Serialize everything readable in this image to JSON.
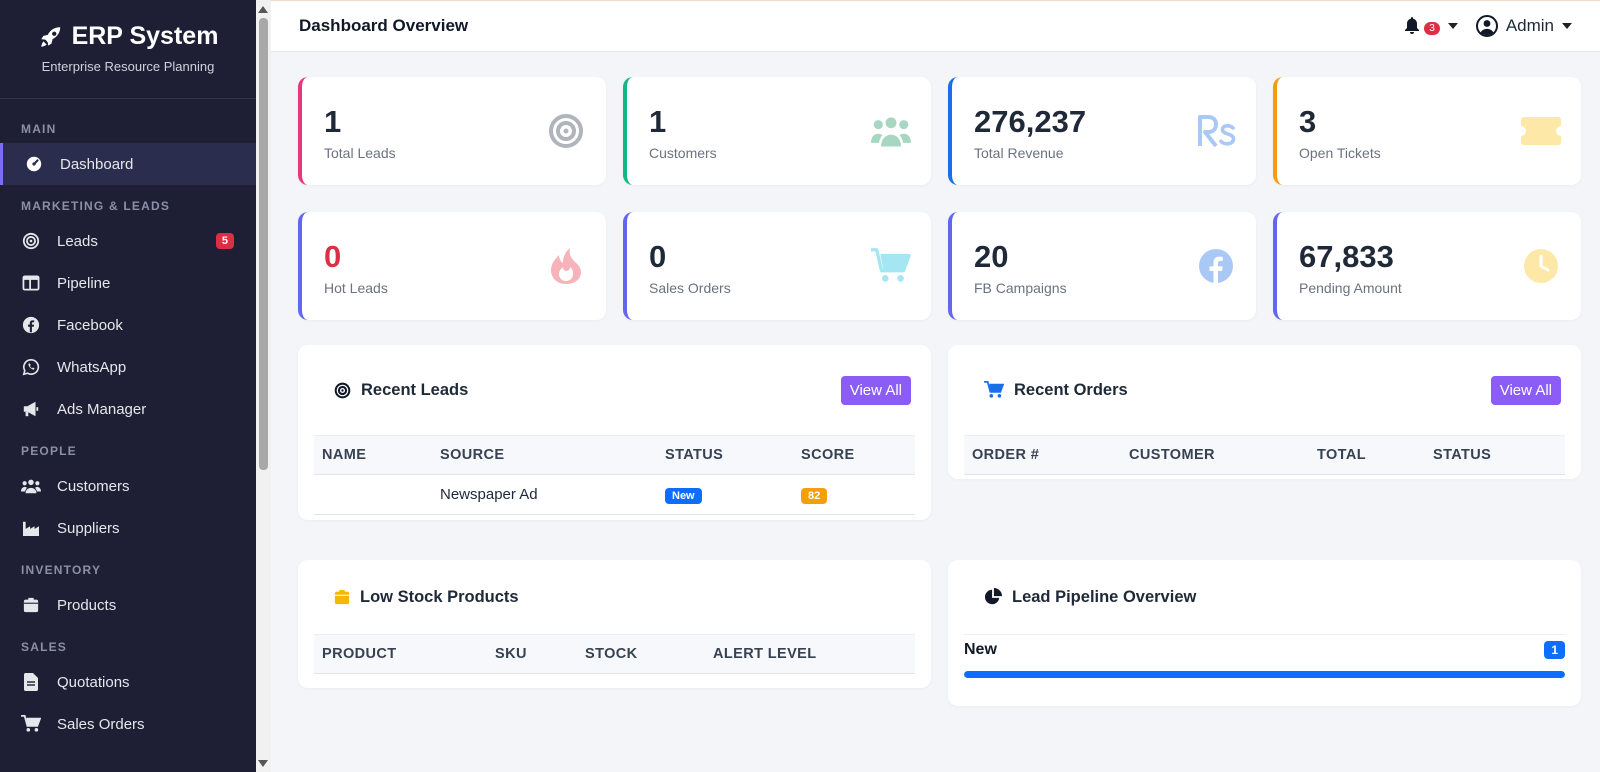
{
  "brand": {
    "title": "ERP System",
    "subtitle": "Enterprise Resource Planning"
  },
  "sidebar": {
    "sections": [
      {
        "label": "MAIN",
        "items": [
          {
            "label": "Dashboard",
            "icon": "gauge-icon",
            "active": true
          }
        ]
      },
      {
        "label": "MARKETING & LEADS",
        "items": [
          {
            "label": "Leads",
            "icon": "bullseye-icon",
            "badge": "5"
          },
          {
            "label": "Pipeline",
            "icon": "columns-icon"
          },
          {
            "label": "Facebook",
            "icon": "facebook-icon"
          },
          {
            "label": "WhatsApp",
            "icon": "whatsapp-icon"
          },
          {
            "label": "Ads Manager",
            "icon": "megaphone-icon"
          }
        ]
      },
      {
        "label": "PEOPLE",
        "items": [
          {
            "label": "Customers",
            "icon": "users-icon"
          },
          {
            "label": "Suppliers",
            "icon": "industry-icon"
          }
        ]
      },
      {
        "label": "INVENTORY",
        "items": [
          {
            "label": "Products",
            "icon": "box-icon"
          }
        ]
      },
      {
        "label": "SALES",
        "items": [
          {
            "label": "Quotations",
            "icon": "file-icon"
          },
          {
            "label": "Sales Orders",
            "icon": "cart-icon"
          }
        ]
      }
    ]
  },
  "header": {
    "title": "Dashboard Overview",
    "notification_count": "3",
    "user_name": "Admin"
  },
  "stats": [
    {
      "value": "1",
      "label": "Total Leads",
      "accent": "#e6387d",
      "icon": "bullseye-icon",
      "icon_color": "#9ca3af"
    },
    {
      "value": "1",
      "label": "Customers",
      "accent": "#10b981",
      "icon": "users-icon",
      "icon_color": "#a7d7c2"
    },
    {
      "value": "276,237",
      "label": "Total Revenue",
      "accent": "#1a6fe8",
      "icon": "rupee-icon",
      "icon_color": "#a9c8f6"
    },
    {
      "value": "3",
      "label": "Open Tickets",
      "accent": "#f59e0b",
      "icon": "ticket-icon",
      "icon_color": "#fde8a8"
    },
    {
      "value": "0",
      "label": "Hot Leads",
      "accent": "#6366f1",
      "icon": "fire-icon",
      "icon_color": "#f6b3b9",
      "value_color": "#dc2f45"
    },
    {
      "value": "0",
      "label": "Sales Orders",
      "accent": "#6366f1",
      "icon": "cart-icon",
      "icon_color": "#a5e6f3"
    },
    {
      "value": "20",
      "label": "FB Campaigns",
      "accent": "#6366f1",
      "icon": "facebook-icon",
      "icon_color": "#a9c8f6"
    },
    {
      "value": "67,833",
      "label": "Pending Amount",
      "accent": "#6366f1",
      "icon": "clock-icon",
      "icon_color": "#fde8a8"
    }
  ],
  "recent_leads": {
    "title": "Recent Leads",
    "button": "View All",
    "columns": [
      "NAME",
      "SOURCE",
      "STATUS",
      "SCORE"
    ],
    "rows": [
      {
        "name": "",
        "source": "Newspaper Ad",
        "status": "New",
        "score": "82"
      }
    ]
  },
  "recent_orders": {
    "title": "Recent Orders",
    "button": "View All",
    "columns": [
      "ORDER #",
      "CUSTOMER",
      "TOTAL",
      "STATUS"
    ]
  },
  "low_stock": {
    "title": "Low Stock Products",
    "columns": [
      "PRODUCT",
      "SKU",
      "STOCK",
      "ALERT LEVEL"
    ]
  },
  "pipeline": {
    "title": "Lead Pipeline Overview",
    "stages": [
      {
        "label": "New",
        "count": "1",
        "fraction": 1.0
      }
    ]
  },
  "colors": {
    "status_new": "#0d6efd",
    "score": "#f59e0b",
    "button": "#8b5cf6"
  }
}
